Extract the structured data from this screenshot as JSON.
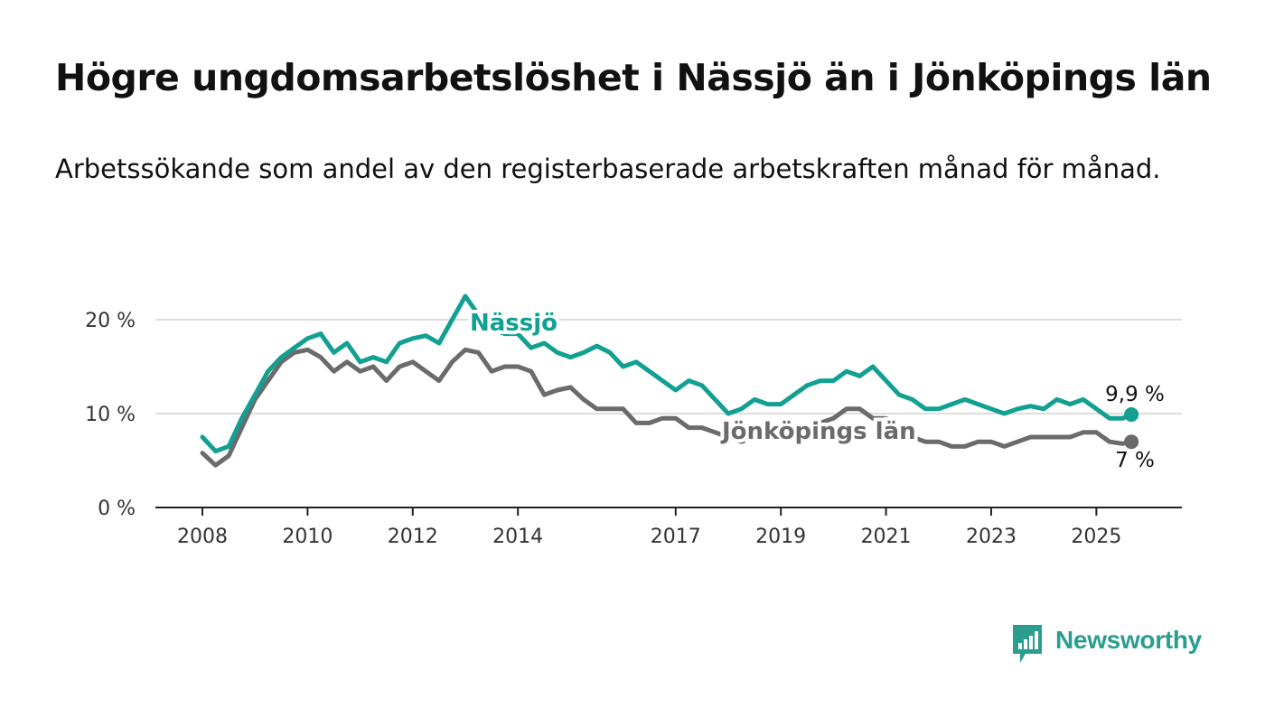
{
  "title": "Högre ungdomsarbetslöshet i Nässjö än i Jönköpings län",
  "subtitle": "Arbetssökande som andel av den registerbaserade arbetskraften månad för månad.",
  "logo_text": "Newsworthy",
  "colors": {
    "nassjo": "#11a091",
    "jonkoping": "#6b6b6b",
    "grid": "#dddddd",
    "axis": "#222222"
  },
  "chart_data": {
    "type": "line",
    "xlabel": "",
    "ylabel": "",
    "x_range": [
      "2008-01",
      "2025-10"
    ],
    "ylim": [
      0,
      25
    ],
    "y_ticks": [
      0,
      10,
      20
    ],
    "y_tick_labels": [
      "0 %",
      "10 %",
      "20 %"
    ],
    "x_ticks": [
      2008,
      2010,
      2012,
      2014,
      2017,
      2019,
      2021,
      2023,
      2025
    ],
    "x_tick_labels": [
      "2008",
      "2010",
      "2012",
      "2014",
      "2017",
      "2019",
      "2021",
      "2023",
      "2025"
    ],
    "grid": true,
    "series": [
      {
        "name": "Nässjö",
        "end_label": "9,9 %",
        "points": [
          [
            "2008-01",
            7.5
          ],
          [
            "2008-04",
            6.0
          ],
          [
            "2008-07",
            6.5
          ],
          [
            "2008-10",
            9.5
          ],
          [
            "2009-01",
            12.0
          ],
          [
            "2009-04",
            14.5
          ],
          [
            "2009-07",
            16.0
          ],
          [
            "2009-10",
            17.0
          ],
          [
            "2010-01",
            18.0
          ],
          [
            "2010-04",
            18.5
          ],
          [
            "2010-07",
            16.5
          ],
          [
            "2010-10",
            17.5
          ],
          [
            "2011-01",
            15.5
          ],
          [
            "2011-04",
            16.0
          ],
          [
            "2011-07",
            15.5
          ],
          [
            "2011-10",
            17.5
          ],
          [
            "2012-01",
            18.0
          ],
          [
            "2012-04",
            18.3
          ],
          [
            "2012-07",
            17.5
          ],
          [
            "2012-10",
            20.0
          ],
          [
            "2013-01",
            22.5
          ],
          [
            "2013-04",
            20.5
          ],
          [
            "2013-07",
            19.0
          ],
          [
            "2013-10",
            18.5
          ],
          [
            "2014-01",
            18.5
          ],
          [
            "2014-04",
            17.0
          ],
          [
            "2014-07",
            17.5
          ],
          [
            "2014-10",
            16.5
          ],
          [
            "2015-01",
            16.0
          ],
          [
            "2015-04",
            16.5
          ],
          [
            "2015-07",
            17.2
          ],
          [
            "2015-10",
            16.5
          ],
          [
            "2016-01",
            15.0
          ],
          [
            "2016-04",
            15.5
          ],
          [
            "2016-07",
            14.5
          ],
          [
            "2016-10",
            13.5
          ],
          [
            "2017-01",
            12.5
          ],
          [
            "2017-04",
            13.5
          ],
          [
            "2017-07",
            13.0
          ],
          [
            "2017-10",
            11.5
          ],
          [
            "2018-01",
            10.0
          ],
          [
            "2018-04",
            10.5
          ],
          [
            "2018-07",
            11.5
          ],
          [
            "2018-10",
            11.0
          ],
          [
            "2019-01",
            11.0
          ],
          [
            "2019-04",
            12.0
          ],
          [
            "2019-07",
            13.0
          ],
          [
            "2019-10",
            13.5
          ],
          [
            "2020-01",
            13.5
          ],
          [
            "2020-04",
            14.5
          ],
          [
            "2020-07",
            14.0
          ],
          [
            "2020-10",
            15.0
          ],
          [
            "2021-01",
            13.5
          ],
          [
            "2021-04",
            12.0
          ],
          [
            "2021-07",
            11.5
          ],
          [
            "2021-10",
            10.5
          ],
          [
            "2022-01",
            10.5
          ],
          [
            "2022-04",
            11.0
          ],
          [
            "2022-07",
            11.5
          ],
          [
            "2022-10",
            11.0
          ],
          [
            "2023-01",
            10.5
          ],
          [
            "2023-04",
            10.0
          ],
          [
            "2023-07",
            10.5
          ],
          [
            "2023-10",
            10.8
          ],
          [
            "2024-01",
            10.5
          ],
          [
            "2024-04",
            11.5
          ],
          [
            "2024-07",
            11.0
          ],
          [
            "2024-10",
            11.5
          ],
          [
            "2025-01",
            10.5
          ],
          [
            "2025-04",
            9.5
          ],
          [
            "2025-07",
            9.5
          ],
          [
            "2025-09",
            9.9
          ]
        ]
      },
      {
        "name": "Jönköpings län",
        "end_label": "7 %",
        "points": [
          [
            "2008-01",
            5.8
          ],
          [
            "2008-04",
            4.5
          ],
          [
            "2008-07",
            5.5
          ],
          [
            "2008-10",
            8.5
          ],
          [
            "2009-01",
            11.5
          ],
          [
            "2009-04",
            13.5
          ],
          [
            "2009-07",
            15.5
          ],
          [
            "2009-10",
            16.5
          ],
          [
            "2010-01",
            16.8
          ],
          [
            "2010-04",
            16.0
          ],
          [
            "2010-07",
            14.5
          ],
          [
            "2010-10",
            15.5
          ],
          [
            "2011-01",
            14.5
          ],
          [
            "2011-04",
            15.0
          ],
          [
            "2011-07",
            13.5
          ],
          [
            "2011-10",
            15.0
          ],
          [
            "2012-01",
            15.5
          ],
          [
            "2012-04",
            14.5
          ],
          [
            "2012-07",
            13.5
          ],
          [
            "2012-10",
            15.5
          ],
          [
            "2013-01",
            16.8
          ],
          [
            "2013-04",
            16.5
          ],
          [
            "2013-07",
            14.5
          ],
          [
            "2013-10",
            15.0
          ],
          [
            "2014-01",
            15.0
          ],
          [
            "2014-04",
            14.5
          ],
          [
            "2014-07",
            12.0
          ],
          [
            "2014-10",
            12.5
          ],
          [
            "2015-01",
            12.8
          ],
          [
            "2015-04",
            11.5
          ],
          [
            "2015-07",
            10.5
          ],
          [
            "2015-10",
            10.5
          ],
          [
            "2016-01",
            10.5
          ],
          [
            "2016-04",
            9.0
          ],
          [
            "2016-07",
            9.0
          ],
          [
            "2016-10",
            9.5
          ],
          [
            "2017-01",
            9.5
          ],
          [
            "2017-04",
            8.5
          ],
          [
            "2017-07",
            8.5
          ],
          [
            "2017-10",
            8.0
          ],
          [
            "2018-01",
            7.5
          ],
          [
            "2018-04",
            7.0
          ],
          [
            "2018-07",
            7.5
          ],
          [
            "2018-10",
            7.5
          ],
          [
            "2019-01",
            7.5
          ],
          [
            "2019-04",
            7.5
          ],
          [
            "2019-07",
            8.5
          ],
          [
            "2019-10",
            9.0
          ],
          [
            "2020-01",
            9.5
          ],
          [
            "2020-04",
            10.5
          ],
          [
            "2020-07",
            10.5
          ],
          [
            "2020-10",
            9.5
          ],
          [
            "2021-01",
            9.5
          ],
          [
            "2021-04",
            8.5
          ],
          [
            "2021-07",
            7.5
          ],
          [
            "2021-10",
            7.0
          ],
          [
            "2022-01",
            7.0
          ],
          [
            "2022-04",
            6.5
          ],
          [
            "2022-07",
            6.5
          ],
          [
            "2022-10",
            7.0
          ],
          [
            "2023-01",
            7.0
          ],
          [
            "2023-04",
            6.5
          ],
          [
            "2023-07",
            7.0
          ],
          [
            "2023-10",
            7.5
          ],
          [
            "2024-01",
            7.5
          ],
          [
            "2024-04",
            7.5
          ],
          [
            "2024-07",
            7.5
          ],
          [
            "2024-10",
            8.0
          ],
          [
            "2025-01",
            8.0
          ],
          [
            "2025-04",
            7.0
          ],
          [
            "2025-07",
            6.8
          ],
          [
            "2025-09",
            7.0
          ]
        ]
      }
    ]
  }
}
